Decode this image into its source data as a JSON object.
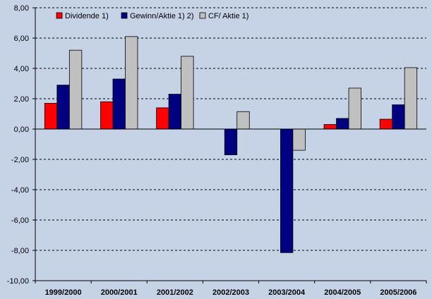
{
  "chart_data": {
    "type": "bar",
    "title": "",
    "xlabel": "",
    "ylabel": "",
    "categories": [
      "1999/2000",
      "2000/2001",
      "2001/2002",
      "2002/2003",
      "2003/2004",
      "2004/2005",
      "2005/2006"
    ],
    "series": [
      {
        "name": "Dividende 1)",
        "color": "#ff0000",
        "values": [
          1.7,
          1.8,
          1.4,
          0,
          0,
          0.3,
          0.65
        ]
      },
      {
        "name": "Gewinn/Aktie 1) 2)",
        "color": "#000080",
        "values": [
          2.9,
          3.3,
          2.3,
          -1.7,
          -8.15,
          0.7,
          1.6
        ]
      },
      {
        "name": "CF/ Aktie 1)",
        "color": "#c0c0c0",
        "values": [
          5.2,
          6.1,
          4.8,
          1.15,
          -1.4,
          2.7,
          4.05
        ]
      }
    ],
    "ylim": [
      -10,
      8
    ],
    "yticks": [
      8,
      6,
      4,
      2,
      0,
      -2,
      -4,
      -6,
      -8,
      -10
    ],
    "ytick_labels": [
      "8,00",
      "6,00",
      "4,00",
      "2,00",
      "0,00",
      "-2,00",
      "-4,00",
      "-6,00",
      "-8,00",
      "-10,00"
    ],
    "grid": true,
    "legend_position": "top-left"
  }
}
